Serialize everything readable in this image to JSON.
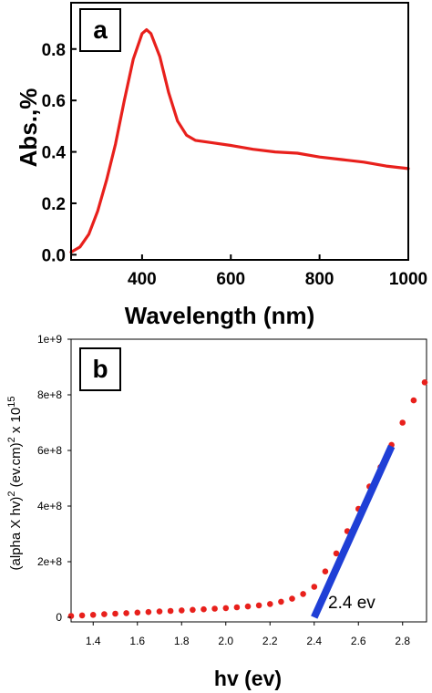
{
  "chart_data": [
    {
      "panel_label": "a",
      "type": "line",
      "xlabel": "Wavelength (nm)",
      "ylabel": "Abs.,%",
      "xlim": [
        240,
        1000
      ],
      "ylim": [
        -0.02,
        0.98
      ],
      "xticks": [
        400,
        600,
        800,
        1000
      ],
      "xtick_labels": [
        "400",
        "600",
        "800",
        "1000"
      ],
      "yticks": [
        0.0,
        0.2,
        0.4,
        0.6,
        0.8
      ],
      "ytick_labels": [
        "0.0",
        "0.2",
        "0.4",
        "0.6",
        "0.8"
      ],
      "series": [
        {
          "color": "#e8201c",
          "x": [
            240,
            260,
            280,
            300,
            320,
            340,
            360,
            380,
            400,
            410,
            420,
            440,
            460,
            480,
            500,
            520,
            540,
            560,
            600,
            650,
            700,
            750,
            800,
            850,
            900,
            950,
            1000
          ],
          "y": [
            0.01,
            0.03,
            0.08,
            0.17,
            0.29,
            0.43,
            0.6,
            0.76,
            0.86,
            0.875,
            0.86,
            0.77,
            0.63,
            0.52,
            0.465,
            0.445,
            0.44,
            0.435,
            0.425,
            0.41,
            0.4,
            0.395,
            0.38,
            0.37,
            0.36,
            0.345,
            0.335
          ]
        }
      ]
    },
    {
      "panel_label": "b",
      "type": "scatter",
      "xlabel": "hv (ev)",
      "ylabel": "(alpha X hv)² (ev.cm)² x 10¹⁵",
      "ylabel_parts": [
        "(alpha X hv)",
        "2",
        " (ev.cm)",
        "2",
        " x 10",
        "15"
      ],
      "xlim": [
        1.3,
        2.9
      ],
      "ylim": [
        0,
        1000000000
      ],
      "xticks": [
        1.4,
        1.6,
        1.8,
        2.0,
        2.2,
        2.4,
        2.6,
        2.8
      ],
      "xtick_labels": [
        "1.4",
        "1.6",
        "1.8",
        "2.0",
        "2.2",
        "2.4",
        "2.6",
        "2.8"
      ],
      "yticks": [
        0,
        200000000,
        400000000,
        600000000,
        800000000,
        1000000000
      ],
      "ytick_labels": [
        "0",
        "2e+8",
        "4e+8",
        "6e+8",
        "8e+8",
        "1e+9"
      ],
      "series": [
        {
          "color": "#e8201c",
          "x": [
            1.3,
            1.35,
            1.4,
            1.45,
            1.5,
            1.55,
            1.6,
            1.65,
            1.7,
            1.75,
            1.8,
            1.85,
            1.9,
            1.95,
            2.0,
            2.05,
            2.1,
            2.15,
            2.2,
            2.25,
            2.3,
            2.35,
            2.4,
            2.45,
            2.5,
            2.55,
            2.6,
            2.65,
            2.7,
            2.75,
            2.8,
            2.85,
            2.9
          ],
          "y": [
            5000000,
            7000000,
            9000000,
            11000000,
            13000000,
            15000000,
            17000000,
            19000000,
            21000000,
            23000000,
            25000000,
            27000000,
            29000000,
            31000000,
            33000000,
            36000000,
            39000000,
            43000000,
            48000000,
            56000000,
            67000000,
            84000000,
            110000000,
            165000000,
            230000000,
            310000000,
            390000000,
            470000000,
            540000000,
            620000000,
            700000000,
            780000000,
            845000000
          ]
        }
      ],
      "fit_line": {
        "color": "#1f3fd6",
        "x": [
          2.4,
          2.75
        ],
        "y": [
          0,
          615000000
        ]
      },
      "annotation": {
        "text": "2.4 ev",
        "x": 2.45,
        "y": 30000000
      }
    }
  ]
}
